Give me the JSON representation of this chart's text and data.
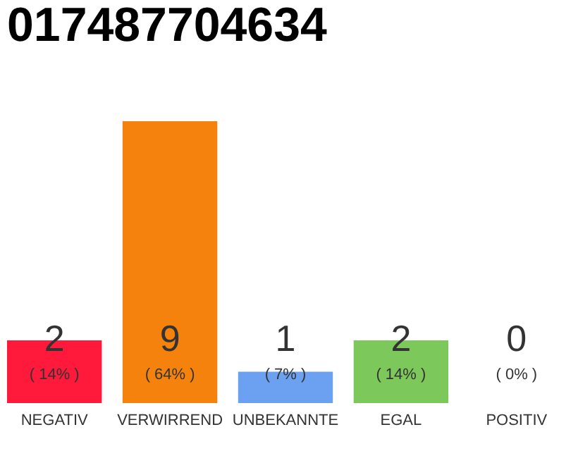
{
  "chart_data": {
    "type": "bar",
    "title": "017487704634",
    "categories": [
      "NEGATIV",
      "VERWIRREND",
      "UNBEKANNTE",
      "EGAL",
      "POSITIV"
    ],
    "values": [
      2,
      9,
      1,
      2,
      0
    ],
    "colors": [
      "#ff1a3c",
      "#f5820d",
      "#6ca0f0",
      "#7dc85a",
      "#cccccc"
    ],
    "data_labels": true,
    "annotations": [
      "( 14% )",
      "( 64% )",
      "( 7% )",
      "( 14% )",
      "( 0% )"
    ],
    "grid": false
  }
}
